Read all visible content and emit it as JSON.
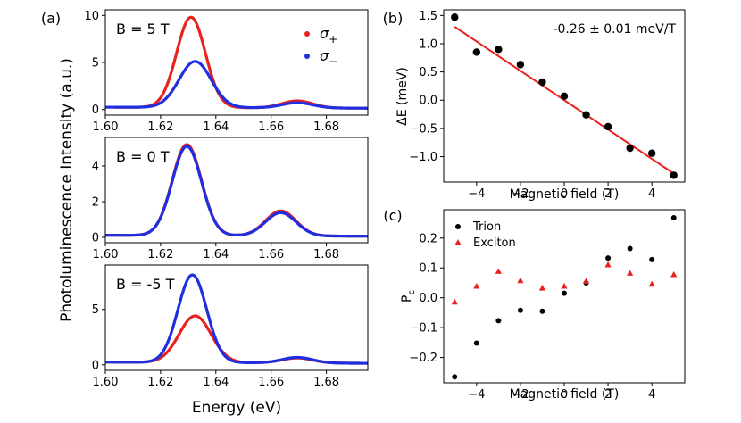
{
  "colors": {
    "sigma_plus": "#e8231f",
    "sigma_minus": "#1f2fe0",
    "fit_line": "#e8231f",
    "trion": "#000000",
    "exciton": "#e8231f"
  },
  "chart_data": [
    {
      "type": "line",
      "panel_label": "(a)",
      "shared_xlabel": "Energy (eV)",
      "shared_ylabel": "Photoluminescence Intensity (a.u.)",
      "legend": [
        "σ₊",
        "σ₋"
      ],
      "legend_labels": {
        "plus_sym": "σ",
        "plus_sub": "+",
        "minus_sym": "σ",
        "minus_sub": "−"
      },
      "xlim": [
        1.6,
        1.695
      ],
      "xticks": [
        1.6,
        1.62,
        1.64,
        1.66,
        1.68
      ],
      "xtick_labels": [
        "1.60",
        "1.62",
        "1.64",
        "1.66",
        "1.68"
      ],
      "subplots": [
        {
          "annotation": "B = 5 T",
          "ylim": [
            -0.6,
            10.6
          ],
          "yticks": [
            0,
            5,
            10
          ],
          "ytick_labels": [
            "0",
            "5",
            "10"
          ],
          "series": [
            {
              "name": "σ+",
              "peaks": [
                {
                  "center": 1.631,
                  "amplitude": 9.6,
                  "sigma": 0.0052
                },
                {
                  "center": 1.6695,
                  "amplitude": 0.75,
                  "sigma": 0.0055
                }
              ],
              "baseline": 0.25
            },
            {
              "name": "σ-",
              "peaks": [
                {
                  "center": 1.6325,
                  "amplitude": 4.9,
                  "sigma": 0.0058
                },
                {
                  "center": 1.6695,
                  "amplitude": 0.55,
                  "sigma": 0.0055
                }
              ],
              "baseline": 0.25
            }
          ]
        },
        {
          "annotation": "B = 0 T",
          "ylim": [
            -0.3,
            5.6
          ],
          "yticks": [
            0,
            2,
            4
          ],
          "ytick_labels": [
            "0",
            "2",
            "4"
          ],
          "series": [
            {
              "name": "σ+",
              "peaks": [
                {
                  "center": 1.6295,
                  "amplitude": 5.1,
                  "sigma": 0.0053
                },
                {
                  "center": 1.6635,
                  "amplitude": 1.4,
                  "sigma": 0.0055
                }
              ],
              "baseline": 0.12
            },
            {
              "name": "σ-",
              "peaks": [
                {
                  "center": 1.6295,
                  "amplitude": 5.0,
                  "sigma": 0.0053
                },
                {
                  "center": 1.6635,
                  "amplitude": 1.3,
                  "sigma": 0.0055
                }
              ],
              "baseline": 0.12
            }
          ]
        },
        {
          "annotation": "B = -5 T",
          "ylim": [
            -0.5,
            9.0
          ],
          "yticks": [
            0,
            5
          ],
          "ytick_labels": [
            "0",
            "5"
          ],
          "series": [
            {
              "name": "σ+",
              "peaks": [
                {
                  "center": 1.6325,
                  "amplitude": 4.2,
                  "sigma": 0.0058
                },
                {
                  "center": 1.6695,
                  "amplitude": 0.45,
                  "sigma": 0.0055
                }
              ],
              "baseline": 0.25
            },
            {
              "name": "σ-",
              "peaks": [
                {
                  "center": 1.6315,
                  "amplitude": 7.9,
                  "sigma": 0.0052
                },
                {
                  "center": 1.6695,
                  "amplitude": 0.5,
                  "sigma": 0.0055
                }
              ],
              "baseline": 0.25
            }
          ]
        }
      ]
    },
    {
      "type": "scatter",
      "panel_label": "(b)",
      "annotation": "-0.26 ± 0.01 meV/T",
      "xlabel": "Magnetic field (T)",
      "ylabel": "ΔE (meV)",
      "xlim": [
        -5.5,
        5.5
      ],
      "ylim": [
        -1.45,
        1.6
      ],
      "xticks": [
        -4,
        -2,
        0,
        2,
        4
      ],
      "xtick_labels": [
        "−4",
        "−2",
        "0",
        "2",
        "4"
      ],
      "yticks": [
        -1.0,
        -0.5,
        0.0,
        0.5,
        1.0,
        1.5
      ],
      "ytick_labels": [
        "−1.0",
        "−0.5",
        "0.0",
        "0.5",
        "1.0",
        "1.5"
      ],
      "x": [
        -5,
        -4,
        -3,
        -2,
        -1,
        0,
        1,
        2,
        3,
        4,
        5
      ],
      "y": [
        1.47,
        0.85,
        0.9,
        0.63,
        0.32,
        0.07,
        -0.26,
        -0.47,
        -0.85,
        -0.94,
        -1.33
      ],
      "fit": {
        "slope": -0.26,
        "intercept": 0.0,
        "x_range": [
          -5,
          5
        ]
      }
    },
    {
      "type": "scatter",
      "panel_label": "(c)",
      "xlabel": "Magnetic field (T)",
      "ylabel": "P",
      "ylabel_sub": "c",
      "xlim": [
        -5.5,
        5.5
      ],
      "ylim": [
        -0.285,
        0.295
      ],
      "xticks": [
        -4,
        -2,
        0,
        2,
        4
      ],
      "xtick_labels": [
        "−4",
        "−2",
        "0",
        "2",
        "4"
      ],
      "yticks": [
        -0.2,
        -0.1,
        0.0,
        0.1,
        0.2
      ],
      "ytick_labels": [
        "−0.2",
        "−0.1",
        "0.0",
        "0.1",
        "0.2"
      ],
      "series": [
        {
          "name": "Trion",
          "marker": "circle",
          "x": [
            -5,
            -4,
            -3,
            -2,
            -1,
            0,
            1,
            2,
            3,
            4,
            5
          ],
          "y": [
            -0.265,
            -0.152,
            -0.077,
            -0.042,
            -0.045,
            0.015,
            0.05,
            0.133,
            0.165,
            0.128,
            0.268
          ]
        },
        {
          "name": "Exciton",
          "marker": "triangle",
          "x": [
            -5,
            -4,
            -3,
            -2,
            -1,
            0,
            1,
            2,
            3,
            4,
            5
          ],
          "y": [
            -0.015,
            0.038,
            0.088,
            0.057,
            0.032,
            0.038,
            0.055,
            0.11,
            0.082,
            0.045,
            0.077
          ]
        }
      ]
    }
  ]
}
